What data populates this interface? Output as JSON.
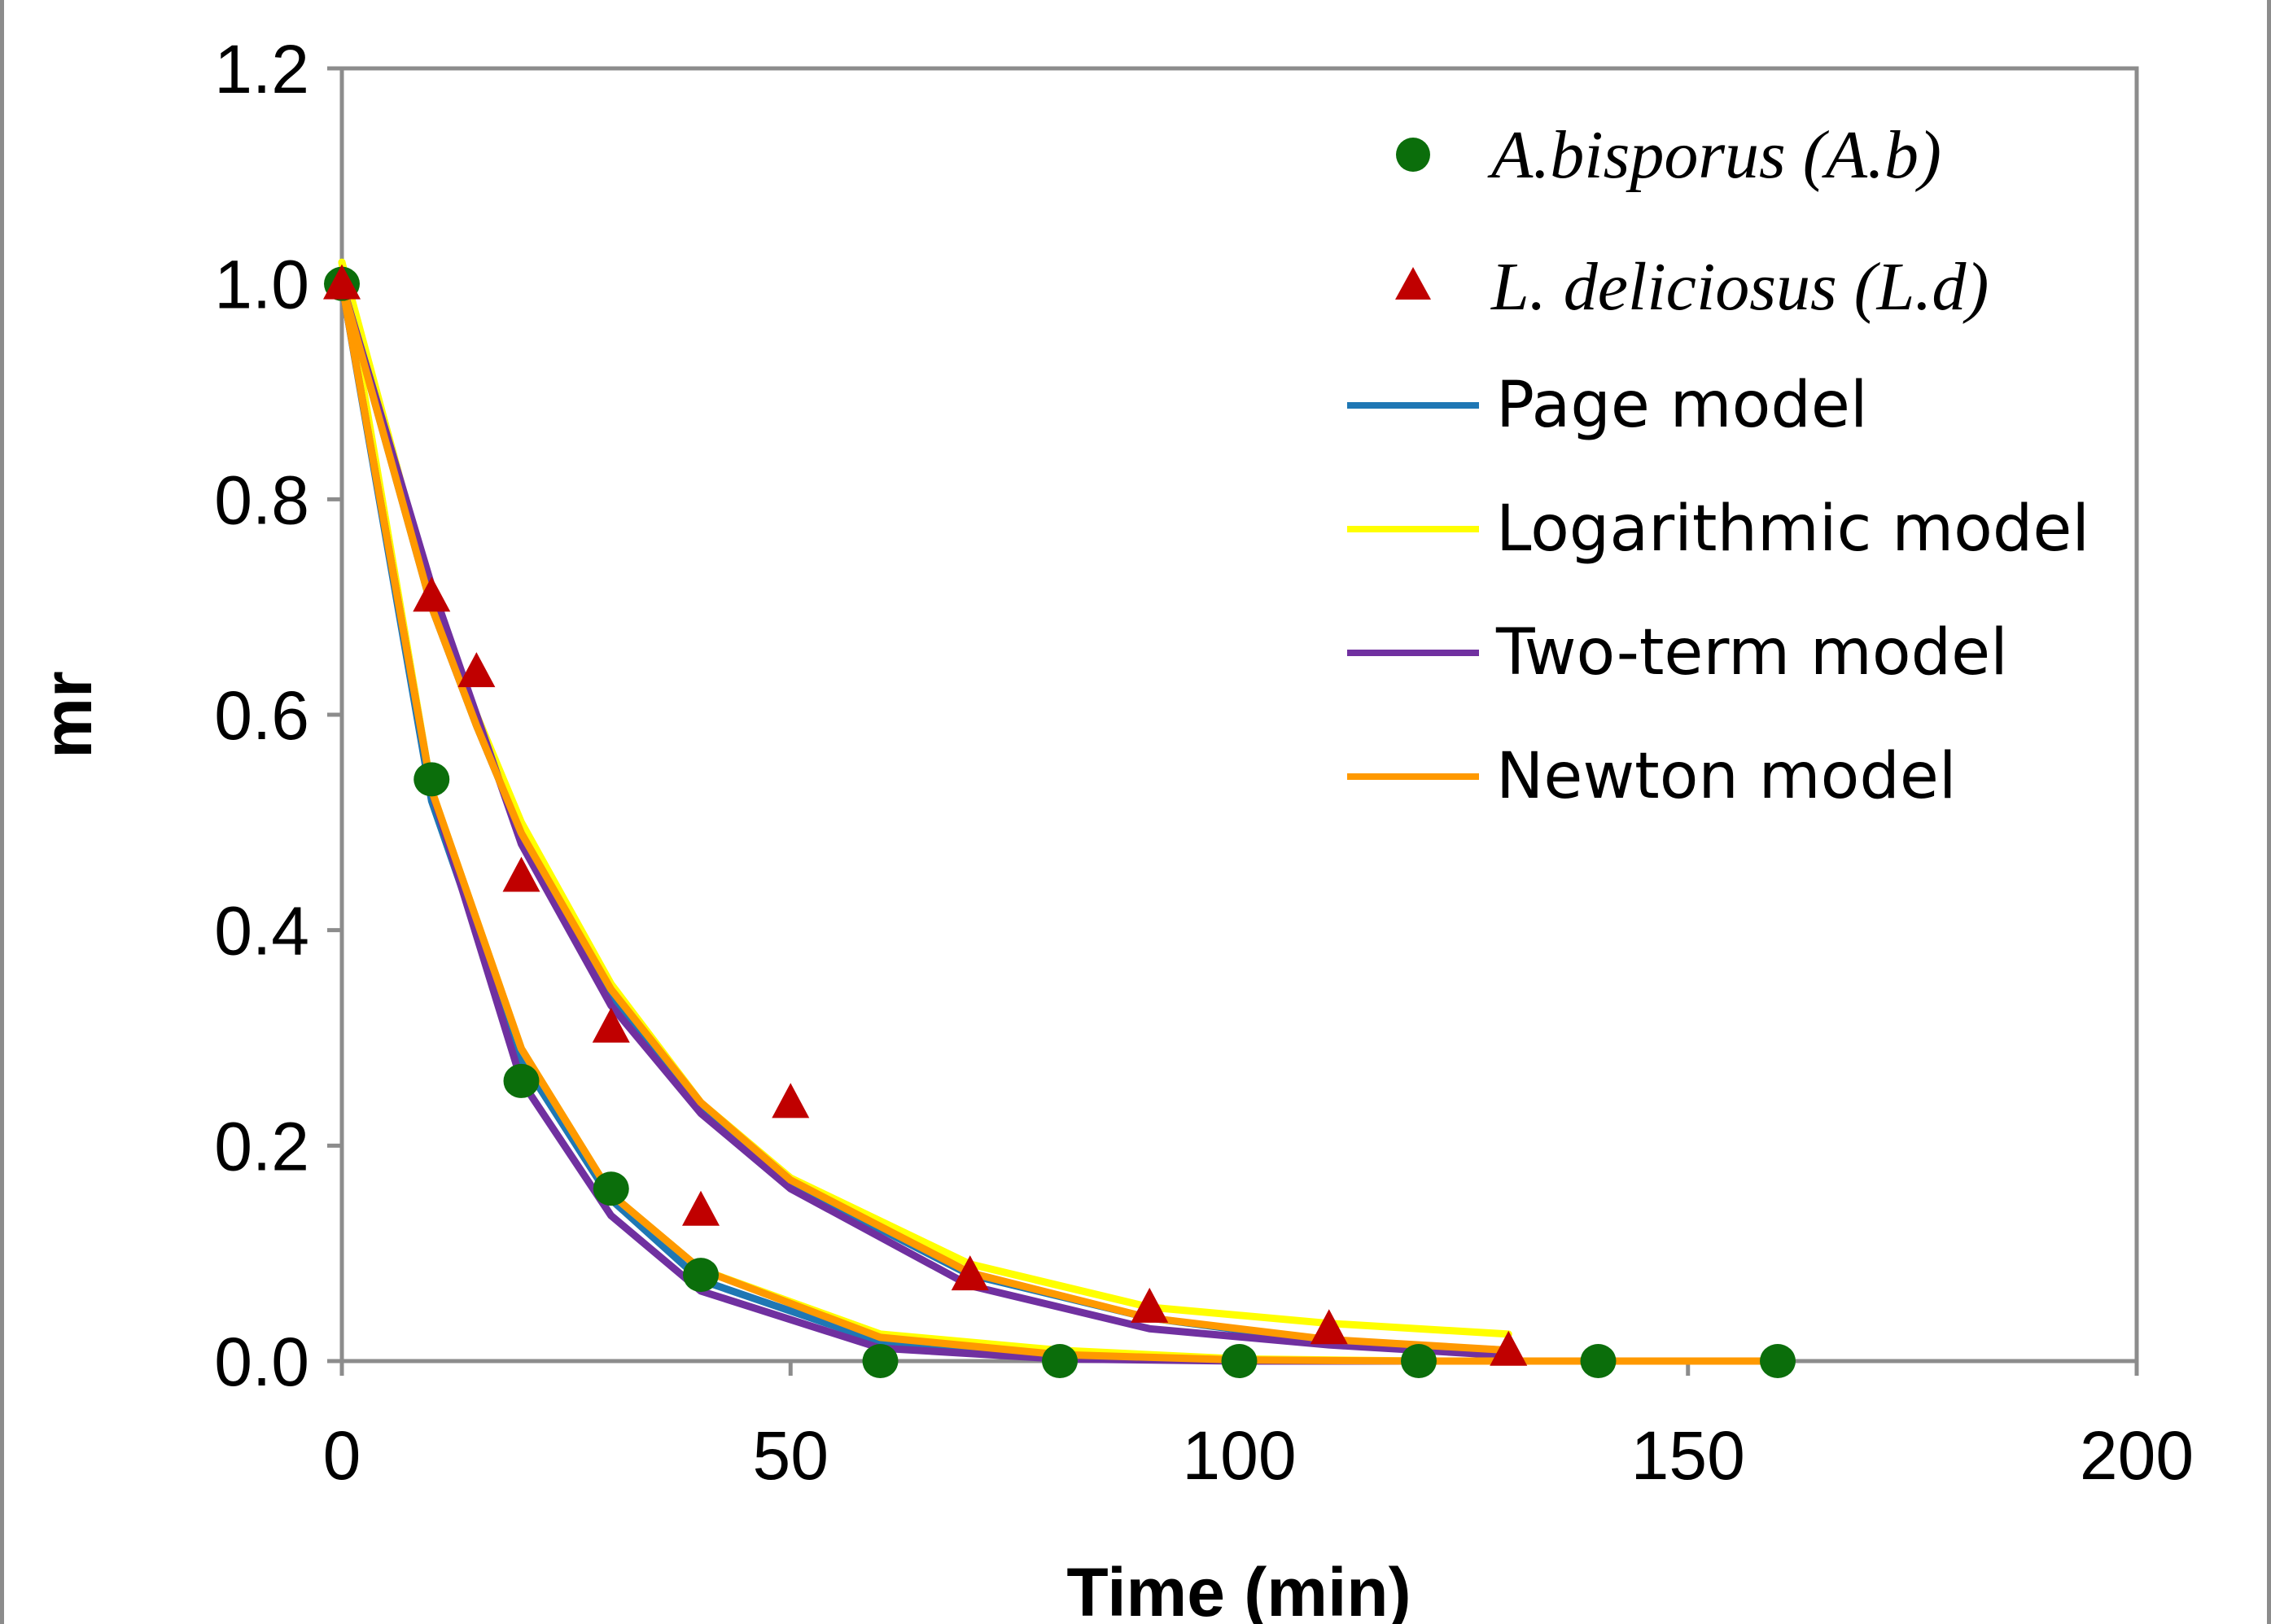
{
  "chart_data": {
    "type": "scatter",
    "xlabel": "Time (min)",
    "ylabel": "mr",
    "xlim": [
      0,
      200
    ],
    "ylim": [
      0,
      1.2
    ],
    "x_ticks": [
      "0",
      "50",
      "100",
      "150",
      "200"
    ],
    "y_ticks": [
      "0.0",
      "0.2",
      "0.4",
      "0.6",
      "0.8",
      "1.0",
      "1.2"
    ],
    "x_tick_values": [
      0,
      50,
      100,
      150,
      200
    ],
    "y_tick_values": [
      0,
      0.2,
      0.4,
      0.6,
      0.8,
      1.0,
      1.2
    ],
    "grid": false,
    "legend_position": "top-right",
    "series": [
      {
        "name": "A.bisporus (A.b)",
        "kind": "points",
        "marker": "circle",
        "color": "#0b6e0b",
        "x": [
          0,
          10,
          20,
          30,
          40,
          60,
          80,
          100,
          120,
          140,
          160
        ],
        "y": [
          1.0,
          0.54,
          0.26,
          0.16,
          0.08,
          0.0,
          0.0,
          0.0,
          0.0,
          0.0,
          0.0
        ]
      },
      {
        "name": "L. deliciosus (L.d)",
        "kind": "points",
        "marker": "triangle",
        "color": "#c00000",
        "x": [
          0,
          10,
          15,
          20,
          30,
          40,
          50,
          70,
          90,
          110,
          130
        ],
        "y": [
          1.0,
          0.71,
          0.64,
          0.45,
          0.31,
          0.14,
          0.24,
          0.08,
          0.05,
          0.03,
          0.01
        ]
      },
      {
        "name": "Page model",
        "kind": "line",
        "color": "#1f77b4",
        "curves": [
          {
            "x": [
              0,
              10,
              20,
              30,
              40,
              60,
              80,
              100,
              120,
              140,
              160
            ],
            "y": [
              1.0,
              0.52,
              0.28,
              0.15,
              0.075,
              0.018,
              0.004,
              0.0,
              0.0,
              0.0,
              0.0
            ]
          },
          {
            "x": [
              0,
              10,
              15,
              20,
              30,
              40,
              50,
              70,
              90,
              110,
              130
            ],
            "y": [
              1.0,
              0.7,
              0.59,
              0.49,
              0.34,
              0.235,
              0.165,
              0.08,
              0.04,
              0.018,
              0.01
            ]
          }
        ]
      },
      {
        "name": "Logarithmic model",
        "kind": "line",
        "color": "#ffff00",
        "curves": [
          {
            "x": [
              0,
              10,
              20,
              30,
              40,
              60,
              80,
              100,
              120,
              140,
              160
            ],
            "y": [
              1.02,
              0.53,
              0.29,
              0.155,
              0.085,
              0.025,
              0.01,
              0.002,
              0.0,
              0.0,
              0.0
            ]
          },
          {
            "x": [
              0,
              10,
              15,
              20,
              30,
              40,
              50,
              70,
              90,
              110,
              130
            ],
            "y": [
              1.02,
              0.71,
              0.6,
              0.5,
              0.35,
              0.24,
              0.17,
              0.09,
              0.05,
              0.035,
              0.025
            ]
          }
        ]
      },
      {
        "name": "Two-term model",
        "kind": "line",
        "color": "#7030a0",
        "curves": [
          {
            "x": [
              0,
              10,
              20,
              30,
              40,
              60,
              80,
              100,
              120,
              140,
              160
            ],
            "y": [
              1.0,
              0.53,
              0.26,
              0.135,
              0.065,
              0.012,
              0.002,
              0.0,
              0.0,
              0.0,
              0.0
            ]
          },
          {
            "x": [
              0,
              10,
              15,
              20,
              30,
              40,
              50,
              70,
              90,
              110,
              130
            ],
            "y": [
              1.0,
              0.72,
              0.6,
              0.48,
              0.33,
              0.23,
              0.16,
              0.07,
              0.03,
              0.015,
              0.005
            ]
          }
        ]
      },
      {
        "name": "Newton model",
        "kind": "line",
        "color": "#ff9900",
        "curves": [
          {
            "x": [
              0,
              10,
              20,
              30,
              40,
              60,
              80,
              100,
              120,
              140,
              160
            ],
            "y": [
              1.0,
              0.53,
              0.29,
              0.155,
              0.085,
              0.022,
              0.006,
              0.001,
              0.0,
              0.0,
              0.0
            ]
          },
          {
            "x": [
              0,
              10,
              15,
              20,
              30,
              40,
              50,
              70,
              90,
              110,
              130
            ],
            "y": [
              1.0,
              0.7,
              0.59,
              0.49,
              0.345,
              0.24,
              0.168,
              0.082,
              0.04,
              0.02,
              0.01
            ]
          }
        ]
      }
    ]
  }
}
